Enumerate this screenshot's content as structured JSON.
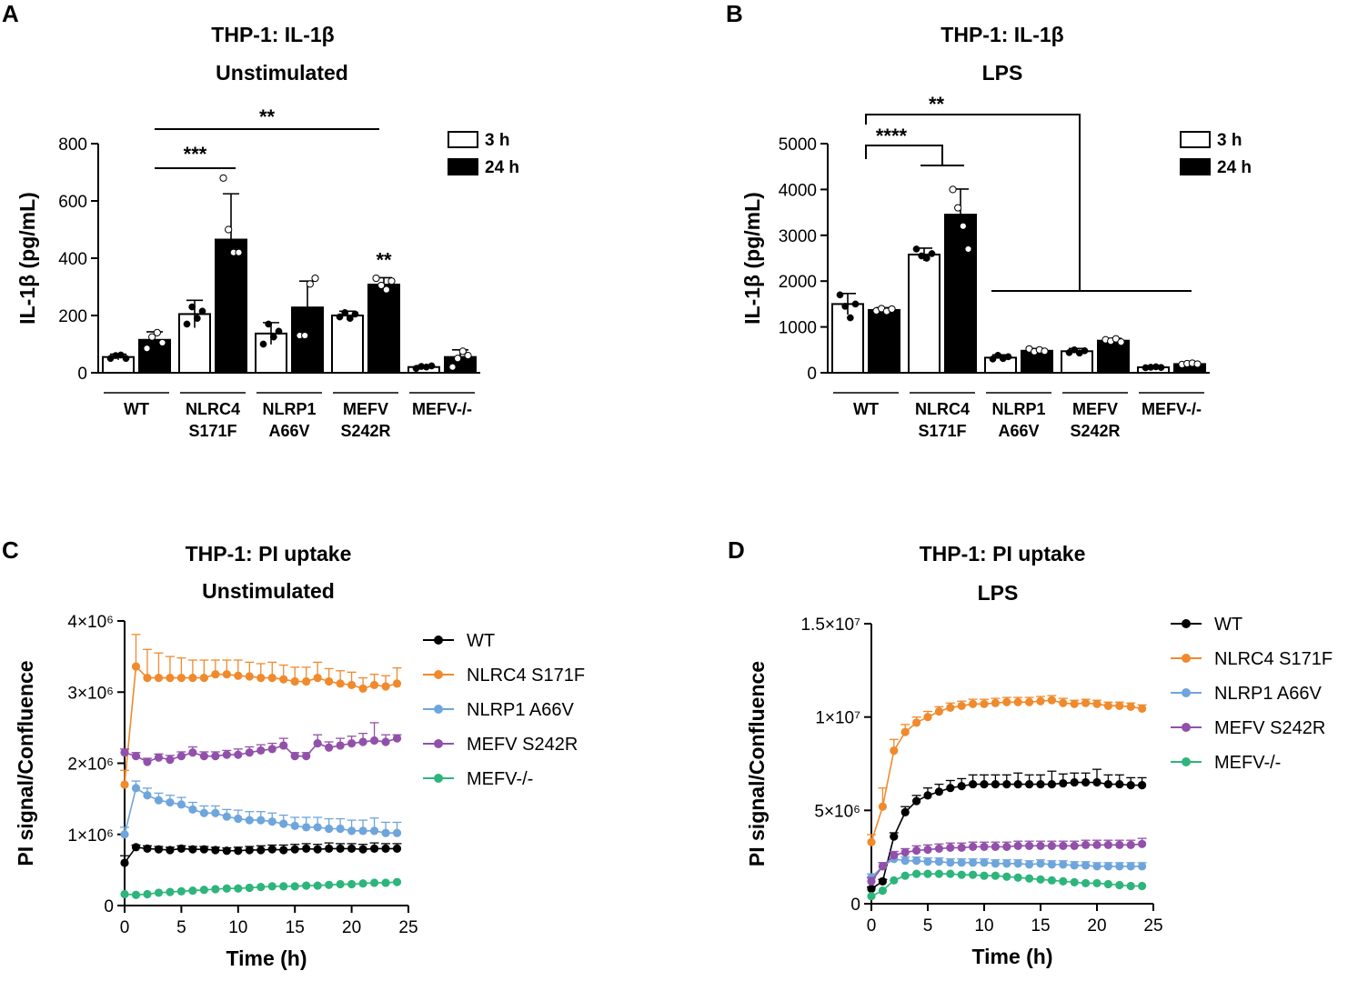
{
  "figure": {
    "colors": {
      "black": "#000000",
      "white": "#ffffff",
      "WT": "#000000",
      "NLRC4 S171F": "#f08a2c",
      "NLRP1 A66V": "#6ea5dc",
      "MEFV S242R": "#9250aa",
      "MEFV-/-": "#2db57c"
    }
  },
  "chart_data": [
    {
      "panel": "A",
      "type": "bar",
      "title": "THP-1: IL-1β",
      "subtitle": "Unstimulated",
      "ylabel": "IL-1β (pg/mL)",
      "ylim": [
        0,
        800
      ],
      "yticks": [
        0,
        200,
        400,
        600,
        800
      ],
      "tick_labels": [
        "0",
        "200",
        "400",
        "600",
        "800"
      ],
      "groups": [
        {
          "name": "WT",
          "lines": [
            "WT"
          ]
        },
        {
          "name": "NLRC4 S171F",
          "lines": [
            "NLRC4",
            "S171F"
          ]
        },
        {
          "name": "NLRP1 A66V",
          "lines": [
            "NLRP1",
            "A66V"
          ]
        },
        {
          "name": "MEFV S242R",
          "lines": [
            "MEFV",
            "S242R"
          ]
        },
        {
          "name": "MEFV-/-",
          "lines": [
            "MEFV-/-"
          ]
        }
      ],
      "legend": [
        {
          "label": "3 h",
          "fill": "white"
        },
        {
          "label": "24 h",
          "fill": "black"
        }
      ],
      "series": [
        {
          "name": "3 h",
          "fill": "white",
          "values": [
            55,
            205,
            137,
            200,
            20
          ],
          "sd": [
            10,
            48,
            38,
            15,
            5
          ],
          "points": [
            [
              50,
              60,
              62,
              50
            ],
            [
              170,
              230,
              190,
              215
            ],
            [
              100,
              170,
              125,
              145
            ],
            [
              195,
              210,
              190,
              205
            ],
            [
              15,
              22,
              20,
              24
            ]
          ]
        },
        {
          "name": "24 h",
          "fill": "black",
          "values": [
            115,
            465,
            228,
            308,
            55
          ],
          "sd": [
            28,
            160,
            92,
            24,
            25
          ],
          "points": [
            [
              85,
              125,
              140,
              105
            ],
            [
              680,
              500,
              420,
              420
            ],
            [
              130,
              130,
              310,
              330
            ],
            [
              330,
              305,
              290,
              320
            ],
            [
              20,
              50,
              75,
              60
            ]
          ]
        }
      ],
      "annotations": [
        {
          "text": "***",
          "kind": "bracket",
          "from_group": 0,
          "to_group": 1
        },
        {
          "text": "**",
          "kind": "bracket",
          "from_group": 0,
          "to_group": 3
        },
        {
          "text": "**",
          "kind": "above_bar",
          "group": 3,
          "series": 1
        }
      ]
    },
    {
      "panel": "B",
      "type": "bar",
      "title": "THP-1: IL-1β",
      "subtitle": "LPS",
      "ylabel": "IL-1β (pg/mL)",
      "ylim": [
        0,
        5000
      ],
      "yticks": [
        0,
        1000,
        2000,
        3000,
        4000,
        5000
      ],
      "tick_labels": [
        "0",
        "1000",
        "2000",
        "3000",
        "4000",
        "5000"
      ],
      "groups": [
        {
          "name": "WT",
          "lines": [
            "WT"
          ]
        },
        {
          "name": "NLRC4 S171F",
          "lines": [
            "NLRC4",
            "S171F"
          ]
        },
        {
          "name": "NLRP1 A66V",
          "lines": [
            "NLRP1",
            "A66V"
          ]
        },
        {
          "name": "MEFV S242R",
          "lines": [
            "MEFV",
            "S242R"
          ]
        },
        {
          "name": "MEFV-/-",
          "lines": [
            "MEFV-/-"
          ]
        }
      ],
      "legend": [
        {
          "label": "3 h",
          "fill": "white"
        },
        {
          "label": "24 h",
          "fill": "black"
        }
      ],
      "series": [
        {
          "name": "3 h",
          "fill": "white",
          "values": [
            1500,
            2580,
            330,
            470,
            120
          ],
          "sd": [
            230,
            140,
            60,
            60,
            15
          ],
          "points": [
            [
              1700,
              1450,
              1200,
              1500
            ],
            [
              2700,
              2550,
              2500,
              2600
            ],
            [
              300,
              380,
              310,
              350
            ],
            [
              440,
              500,
              430,
              480
            ],
            [
              110,
              120,
              130,
              115
            ]
          ]
        },
        {
          "name": "24 h",
          "fill": "black",
          "values": [
            1370,
            3450,
            480,
            700,
            190
          ],
          "sd": [
            50,
            560,
            50,
            50,
            20
          ],
          "points": [
            [
              1350,
              1400,
              1340,
              1390
            ],
            [
              4000,
              3600,
              3200,
              2700
            ],
            [
              520,
              460,
              500,
              470
            ],
            [
              720,
              690,
              740,
              670
            ],
            [
              180,
              200,
              210,
              190
            ]
          ]
        }
      ],
      "annotations": [
        {
          "text": "****",
          "kind": "bracket",
          "from_group": 0,
          "to_group": 1
        },
        {
          "text": "**",
          "kind": "bracket",
          "from_group": 0,
          "to_group": 2
        }
      ]
    },
    {
      "panel": "C",
      "type": "line",
      "title": "THP-1: PI uptake",
      "subtitle": "Unstimulated",
      "xlabel": "Time (h)",
      "ylabel": "PI signal/Confluence",
      "xlim": [
        0,
        25
      ],
      "ylim": [
        0,
        4000000
      ],
      "xticks": [
        0,
        5,
        10,
        15,
        20,
        25
      ],
      "yticks": [
        0,
        1000000,
        2000000,
        3000000,
        4000000
      ],
      "ytick_labels": [
        "0",
        "1×10⁶",
        "2×10⁶",
        "3×10⁶",
        "4×10⁶"
      ],
      "x": [
        0,
        1,
        2,
        3,
        4,
        5,
        6,
        7,
        8,
        9,
        10,
        11,
        12,
        13,
        14,
        15,
        16,
        17,
        18,
        19,
        20,
        21,
        22,
        23,
        24
      ],
      "series": [
        {
          "name": "WT",
          "values": [
            0.6,
            0.82,
            0.8,
            0.79,
            0.78,
            0.8,
            0.79,
            0.79,
            0.78,
            0.77,
            0.77,
            0.78,
            0.78,
            0.79,
            0.78,
            0.79,
            0.8,
            0.79,
            0.8,
            0.8,
            0.8,
            0.79,
            0.8,
            0.8,
            0.8
          ],
          "err": [
            0.1,
            0.03,
            0.04,
            0.04,
            0.04,
            0.04,
            0.04,
            0.04,
            0.04,
            0.04,
            0.05,
            0.05,
            0.06,
            0.06,
            0.07,
            0.07,
            0.07,
            0.07,
            0.08,
            0.07,
            0.07,
            0.07,
            0.08,
            0.07,
            0.07
          ],
          "scale": 1000000
        },
        {
          "name": "NLRC4 S171F",
          "values": [
            1.7,
            3.36,
            3.2,
            3.2,
            3.2,
            3.2,
            3.2,
            3.2,
            3.25,
            3.25,
            3.23,
            3.22,
            3.2,
            3.2,
            3.18,
            3.15,
            3.15,
            3.2,
            3.15,
            3.12,
            3.1,
            3.05,
            3.1,
            3.08,
            3.12
          ],
          "err": [
            0.2,
            0.45,
            0.4,
            0.35,
            0.3,
            0.28,
            0.25,
            0.25,
            0.2,
            0.2,
            0.22,
            0.2,
            0.2,
            0.22,
            0.2,
            0.2,
            0.2,
            0.22,
            0.18,
            0.18,
            0.18,
            0.15,
            0.15,
            0.15,
            0.22
          ],
          "scale": 1000000
        },
        {
          "name": "NLRP1 A66V",
          "values": [
            1.0,
            1.65,
            1.55,
            1.48,
            1.45,
            1.42,
            1.35,
            1.3,
            1.3,
            1.25,
            1.22,
            1.2,
            1.2,
            1.18,
            1.15,
            1.12,
            1.1,
            1.1,
            1.08,
            1.08,
            1.05,
            1.05,
            1.05,
            1.02,
            1.02
          ],
          "err": [
            0.1,
            0.1,
            0.1,
            0.1,
            0.1,
            0.1,
            0.1,
            0.1,
            0.1,
            0.1,
            0.12,
            0.12,
            0.12,
            0.12,
            0.12,
            0.12,
            0.14,
            0.14,
            0.14,
            0.14,
            0.15,
            0.15,
            0.18,
            0.15,
            0.15
          ],
          "scale": 1000000
        },
        {
          "name": "MEFV S242R",
          "values": [
            2.15,
            2.1,
            2.02,
            2.08,
            2.05,
            2.1,
            2.15,
            2.1,
            2.1,
            2.12,
            2.12,
            2.15,
            2.18,
            2.2,
            2.25,
            2.1,
            2.1,
            2.28,
            2.22,
            2.25,
            2.28,
            2.3,
            2.32,
            2.3,
            2.35
          ],
          "err": [
            0.05,
            0.05,
            0.05,
            0.05,
            0.06,
            0.06,
            0.08,
            0.06,
            0.06,
            0.06,
            0.08,
            0.08,
            0.08,
            0.08,
            0.1,
            0.05,
            0.05,
            0.12,
            0.08,
            0.1,
            0.1,
            0.12,
            0.25,
            0.1,
            0.05
          ],
          "scale": 1000000
        },
        {
          "name": "MEFV-/-",
          "values": [
            0.16,
            0.15,
            0.16,
            0.18,
            0.19,
            0.2,
            0.21,
            0.22,
            0.23,
            0.24,
            0.24,
            0.25,
            0.26,
            0.27,
            0.27,
            0.27,
            0.28,
            0.28,
            0.29,
            0.3,
            0.3,
            0.31,
            0.32,
            0.32,
            0.33
          ],
          "err": [
            0.01,
            0.01,
            0.01,
            0.01,
            0.01,
            0.01,
            0.01,
            0.01,
            0.01,
            0.01,
            0.01,
            0.01,
            0.01,
            0.01,
            0.01,
            0.01,
            0.01,
            0.01,
            0.01,
            0.01,
            0.01,
            0.01,
            0.01,
            0.01,
            0.01
          ],
          "scale": 1000000
        }
      ],
      "legend": [
        "WT",
        "NLRC4 S171F",
        "NLRP1 A66V",
        "MEFV S242R",
        "MEFV-/-"
      ]
    },
    {
      "panel": "D",
      "type": "line",
      "title": "THP-1: PI uptake",
      "subtitle": "LPS",
      "xlabel": "Time (h)",
      "ylabel": "PI signal/Confluence",
      "xlim": [
        0,
        25
      ],
      "ylim": [
        0,
        15000000
      ],
      "xticks": [
        0,
        5,
        10,
        15,
        20,
        25
      ],
      "yticks": [
        0,
        5000000,
        10000000,
        15000000
      ],
      "ytick_labels": [
        "0",
        "5×10⁶",
        "1×10⁷",
        "1.5×10⁷"
      ],
      "x": [
        0,
        1,
        2,
        3,
        4,
        5,
        6,
        7,
        8,
        9,
        10,
        11,
        12,
        13,
        14,
        15,
        16,
        17,
        18,
        19,
        20,
        21,
        22,
        23,
        24
      ],
      "series": [
        {
          "name": "WT",
          "values": [
            0.8,
            1.2,
            3.6,
            4.9,
            5.5,
            5.8,
            6.0,
            6.2,
            6.3,
            6.4,
            6.4,
            6.4,
            6.4,
            6.4,
            6.4,
            6.4,
            6.4,
            6.45,
            6.5,
            6.5,
            6.5,
            6.4,
            6.4,
            6.35,
            6.35
          ],
          "err": [
            0.1,
            0.1,
            0.2,
            0.3,
            0.3,
            0.4,
            0.4,
            0.4,
            0.4,
            0.5,
            0.5,
            0.5,
            0.5,
            0.6,
            0.5,
            0.5,
            0.7,
            0.5,
            0.5,
            0.5,
            0.7,
            0.5,
            0.5,
            0.4,
            0.4
          ],
          "scale": 1000000
        },
        {
          "name": "NLRC4 S171F",
          "values": [
            3.3,
            5.2,
            8.2,
            9.2,
            9.7,
            10.0,
            10.3,
            10.5,
            10.6,
            10.7,
            10.7,
            10.75,
            10.8,
            10.8,
            10.8,
            10.85,
            10.9,
            10.75,
            10.7,
            10.75,
            10.7,
            10.6,
            10.6,
            10.55,
            10.45
          ],
          "err": [
            0.4,
            1.0,
            0.6,
            0.4,
            0.3,
            0.3,
            0.25,
            0.25,
            0.25,
            0.25,
            0.25,
            0.25,
            0.25,
            0.25,
            0.25,
            0.25,
            0.25,
            0.25,
            0.2,
            0.2,
            0.2,
            0.2,
            0.2,
            0.2,
            0.2
          ],
          "scale": 1000000
        },
        {
          "name": "NLRP1 A66V",
          "values": [
            1.4,
            2.0,
            2.4,
            2.3,
            2.3,
            2.25,
            2.25,
            2.2,
            2.2,
            2.2,
            2.2,
            2.15,
            2.15,
            2.15,
            2.1,
            2.15,
            2.1,
            2.1,
            2.05,
            2.05,
            2.0,
            2.0,
            2.0,
            2.0,
            2.0
          ],
          "err": [
            0.2,
            0.2,
            0.2,
            0.2,
            0.2,
            0.2,
            0.2,
            0.2,
            0.2,
            0.2,
            0.2,
            0.2,
            0.2,
            0.2,
            0.2,
            0.2,
            0.2,
            0.2,
            0.2,
            0.2,
            0.2,
            0.2,
            0.2,
            0.2,
            0.2
          ],
          "scale": 1000000
        },
        {
          "name": "MEFV S242R",
          "values": [
            1.2,
            2.0,
            2.6,
            2.75,
            2.85,
            2.9,
            2.95,
            3.0,
            3.0,
            3.05,
            3.05,
            3.05,
            3.05,
            3.1,
            3.1,
            3.1,
            3.1,
            3.1,
            3.1,
            3.15,
            3.15,
            3.15,
            3.15,
            3.15,
            3.2
          ],
          "err": [
            0.2,
            0.2,
            0.2,
            0.2,
            0.25,
            0.25,
            0.25,
            0.25,
            0.25,
            0.25,
            0.25,
            0.25,
            0.25,
            0.25,
            0.25,
            0.25,
            0.25,
            0.25,
            0.25,
            0.25,
            0.25,
            0.25,
            0.25,
            0.25,
            0.3
          ],
          "scale": 1000000
        },
        {
          "name": "MEFV-/-",
          "values": [
            0.4,
            0.7,
            1.25,
            1.5,
            1.6,
            1.6,
            1.6,
            1.6,
            1.55,
            1.55,
            1.5,
            1.5,
            1.45,
            1.4,
            1.35,
            1.3,
            1.25,
            1.2,
            1.15,
            1.1,
            1.1,
            1.05,
            1.0,
            0.95,
            0.95
          ],
          "err": [
            0.05,
            0.05,
            0.05,
            0.05,
            0.05,
            0.05,
            0.05,
            0.05,
            0.05,
            0.05,
            0.05,
            0.05,
            0.05,
            0.05,
            0.05,
            0.05,
            0.05,
            0.05,
            0.05,
            0.05,
            0.05,
            0.05,
            0.05,
            0.05,
            0.05
          ],
          "scale": 1000000
        }
      ],
      "legend": [
        "WT",
        "NLRC4 S171F",
        "NLRP1 A66V",
        "MEFV S242R",
        "MEFV-/-"
      ]
    }
  ]
}
